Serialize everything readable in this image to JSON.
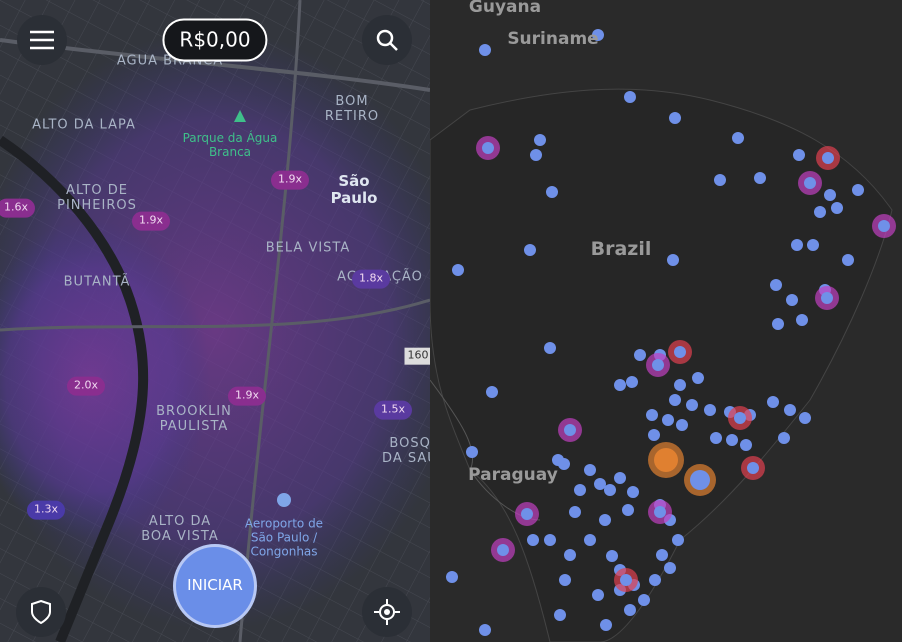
{
  "header": {
    "balance": "R$0,00"
  },
  "city_map": {
    "neighborhoods": [
      "AGUA BRANCA",
      "BOM RETIRO",
      "ALTO DA LAPA",
      "ALTO DE PINHEIROS",
      "BELA VISTA",
      "ACLIMAÇÃO",
      "BUTANTÃ",
      "BROOKLIN PAULISTA",
      "BOSQUE DA SAÚDE",
      "ALTO DA BOA VISTA"
    ],
    "city": "São Paulo",
    "places": [
      "Parque da Água Branca",
      "Aeroporto de São Paulo / Congonhas"
    ],
    "surge": [
      "1.6x",
      "1.9x",
      "1.9x",
      "1.8x",
      "2.0x",
      "1.9x",
      "1.5x",
      "1.3x"
    ],
    "road_sign": "160"
  },
  "start_button": "INICIAR",
  "country_map": {
    "labels": [
      "Guyana",
      "Suriname",
      "Brazil",
      "Paraguay"
    ]
  }
}
